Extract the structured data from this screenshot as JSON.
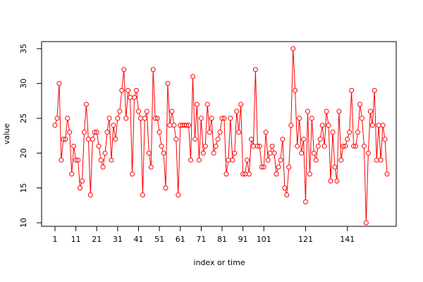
{
  "chart_data": {
    "type": "line",
    "title": "",
    "xlabel": "index or time",
    "ylabel": "value",
    "xlim": [
      1,
      160
    ],
    "ylim": [
      10,
      35
    ],
    "x_ticks": [
      1,
      11,
      21,
      31,
      41,
      51,
      61,
      71,
      81,
      91,
      101,
      121,
      141
    ],
    "y_ticks": [
      10,
      15,
      20,
      25,
      30,
      35
    ],
    "grid": false,
    "legend": "none",
    "series": [
      {
        "color": "#ff0000",
        "marker": "open-circle",
        "values": [
          24,
          25,
          30,
          19,
          22,
          22,
          25,
          23,
          17,
          21,
          19,
          19,
          15,
          16,
          23,
          27,
          22,
          14,
          22,
          23,
          23,
          21,
          19,
          18,
          20,
          23,
          25,
          19,
          24,
          22,
          25,
          26,
          29,
          32,
          25,
          29,
          28,
          17,
          28,
          29,
          26,
          25,
          14,
          25,
          26,
          20,
          18,
          32,
          25,
          25,
          23,
          21,
          20,
          15,
          30,
          24,
          26,
          24,
          22,
          14,
          24,
          24,
          24,
          24,
          24,
          19,
          31,
          22,
          27,
          19,
          25,
          20,
          21,
          27,
          23,
          25,
          20,
          21,
          22,
          23,
          25,
          25,
          17,
          19,
          25,
          19,
          20,
          26,
          23,
          27,
          17,
          17,
          19,
          17,
          22,
          21,
          32,
          21,
          21,
          18,
          18,
          23,
          19,
          20,
          21,
          20,
          17,
          18,
          19,
          22,
          15,
          14,
          18,
          24,
          35,
          29,
          21,
          25,
          20,
          22,
          13,
          26,
          17,
          25,
          20,
          19,
          21,
          22,
          24,
          21,
          26,
          24,
          16,
          23,
          18,
          16,
          26,
          19,
          21,
          21,
          22,
          23,
          29,
          21,
          21,
          23,
          27,
          25,
          21,
          10,
          20,
          26,
          24,
          29,
          19,
          24,
          19,
          24,
          22,
          17
        ]
      }
    ]
  }
}
